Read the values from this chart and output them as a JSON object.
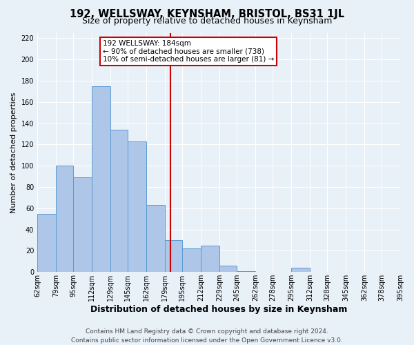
{
  "title": "192, WELLSWAY, KEYNSHAM, BRISTOL, BS31 1JL",
  "subtitle": "Size of property relative to detached houses in Keynsham",
  "xlabel": "Distribution of detached houses by size in Keynsham",
  "ylabel": "Number of detached properties",
  "bar_values": [
    55,
    100,
    89,
    175,
    134,
    123,
    63,
    30,
    22,
    25,
    6,
    1,
    0,
    0,
    4,
    0,
    0,
    0,
    0,
    0
  ],
  "bin_labels": [
    "62sqm",
    "79sqm",
    "95sqm",
    "112sqm",
    "129sqm",
    "145sqm",
    "162sqm",
    "179sqm",
    "195sqm",
    "212sqm",
    "229sqm",
    "245sqm",
    "262sqm",
    "278sqm",
    "295sqm",
    "312sqm",
    "328sqm",
    "345sqm",
    "362sqm",
    "378sqm",
    "395sqm"
  ],
  "bar_edges": [
    62,
    79,
    95,
    112,
    129,
    145,
    162,
    179,
    195,
    212,
    229,
    245,
    262,
    278,
    295,
    312,
    328,
    345,
    362,
    378,
    395
  ],
  "bar_color": "#aec6e8",
  "bar_edge_color": "#5b9bd5",
  "ylim": [
    0,
    225
  ],
  "yticks": [
    0,
    20,
    40,
    60,
    80,
    100,
    120,
    140,
    160,
    180,
    200,
    220
  ],
  "property_size": 184,
  "vline_color": "#cc0000",
  "annotation_title": "192 WELLSWAY: 184sqm",
  "annotation_line1": "← 90% of detached houses are smaller (738)",
  "annotation_line2": "10% of semi-detached houses are larger (81) →",
  "annotation_box_color": "#ffffff",
  "annotation_box_edge": "#cc0000",
  "footer_line1": "Contains HM Land Registry data © Crown copyright and database right 2024.",
  "footer_line2": "Contains public sector information licensed under the Open Government Licence v3.0.",
  "bg_color": "#e8f0f8",
  "grid_color": "#ffffff",
  "title_fontsize": 10.5,
  "subtitle_fontsize": 9,
  "ylabel_fontsize": 8,
  "xlabel_fontsize": 9,
  "tick_fontsize": 7,
  "footer_fontsize": 6.5,
  "annotation_fontsize": 7.5
}
